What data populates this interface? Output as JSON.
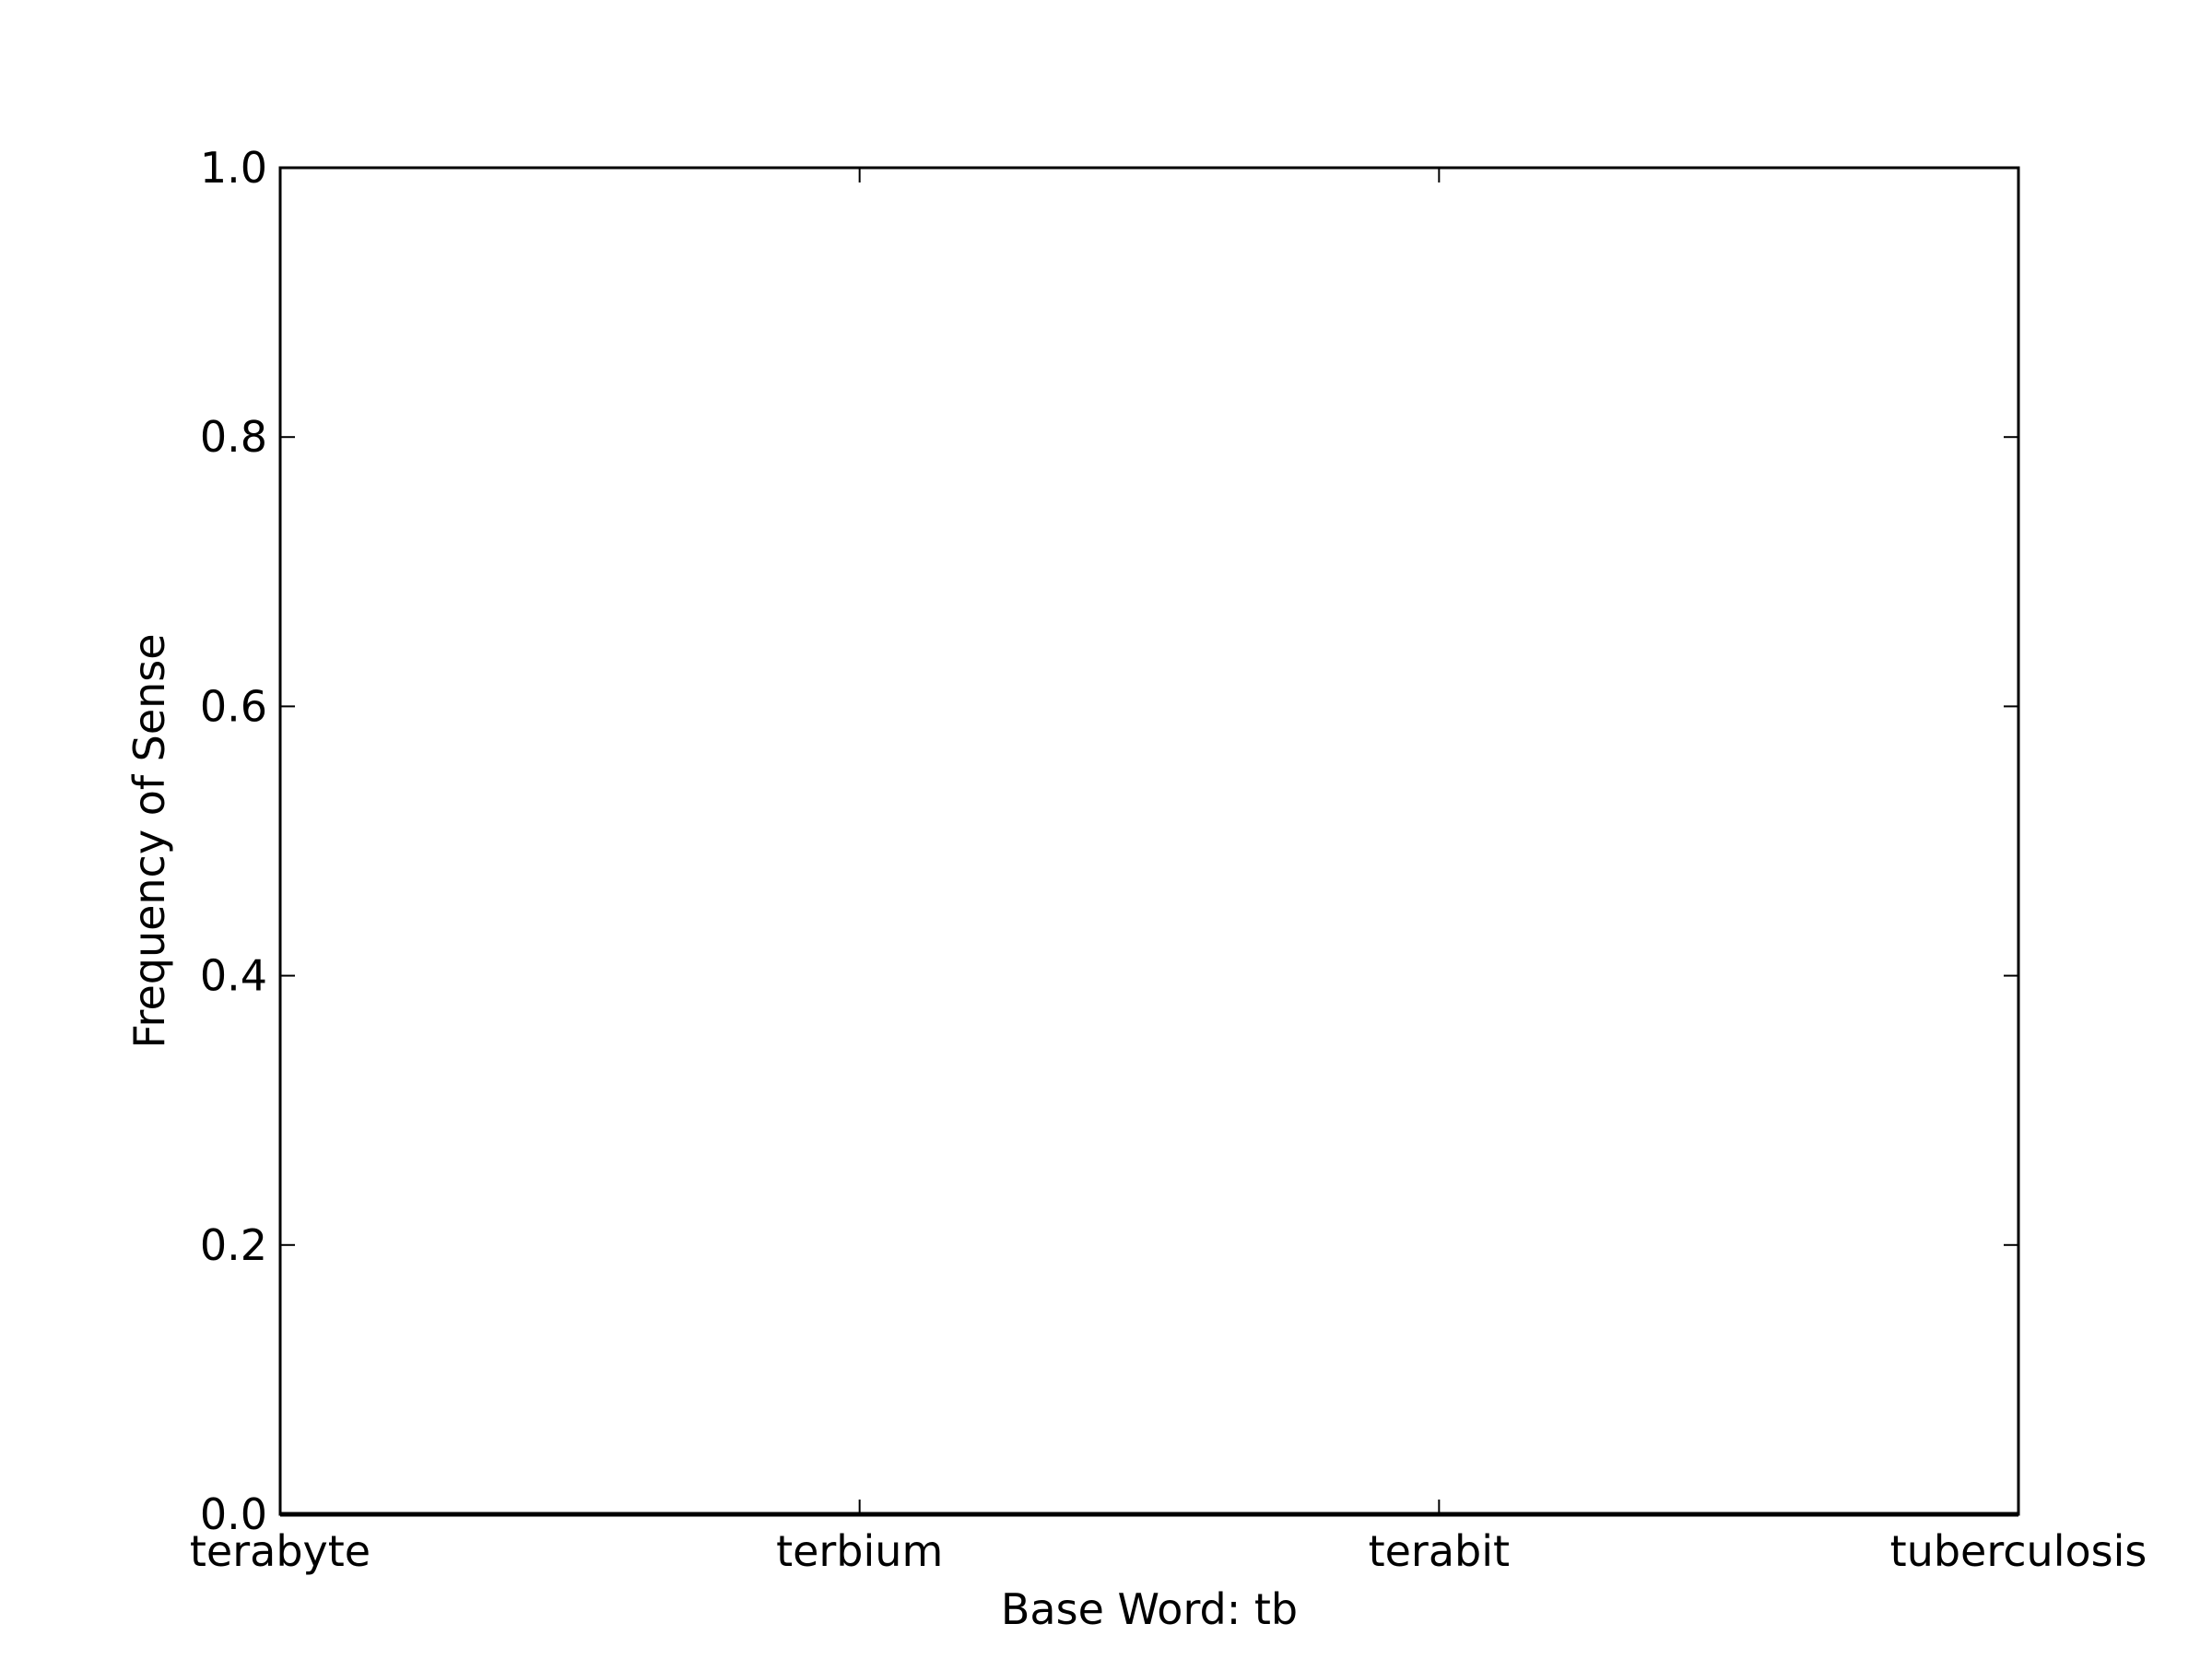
{
  "chart_data": {
    "type": "line",
    "title": "",
    "xlabel": "Base Word: tb",
    "ylabel": "Frequency of Sense",
    "categories": [
      "terabyte",
      "terbium",
      "terabit",
      "tuberculosis"
    ],
    "series": [
      {
        "values": [
          0.0,
          0.0,
          0.0,
          0.0
        ],
        "color": "#000000"
      }
    ],
    "ylim": [
      0.0,
      1.0
    ],
    "yticks": [
      0.0,
      0.2,
      0.4,
      0.6,
      0.8,
      1.0
    ],
    "ytick_labels": [
      "0.0",
      "0.2",
      "0.4",
      "0.6",
      "0.8",
      "1.0"
    ],
    "grid": false,
    "legend": "none"
  }
}
